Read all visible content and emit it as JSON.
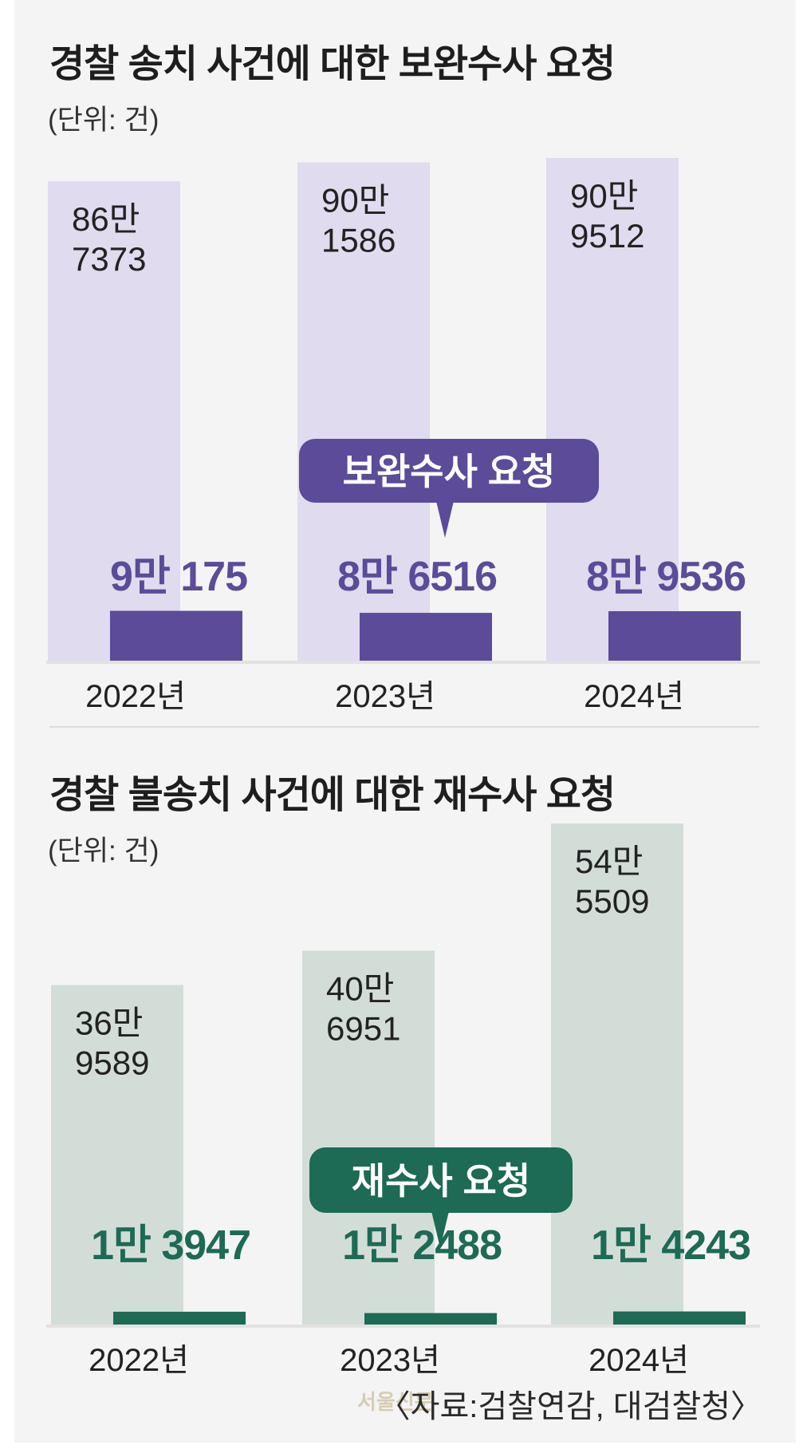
{
  "chart_data": [
    {
      "type": "bar",
      "title": "경찰 송치 사건에 대한 보완수사 요청",
      "unit": "(단위: 건)",
      "categories": [
        "2022년",
        "2023년",
        "2024년"
      ],
      "series": [
        {
          "name": "",
          "values": [
            867373,
            901586,
            909512
          ],
          "labels": [
            "86만\n7373",
            "90만\n1586",
            "90만\n9512"
          ]
        },
        {
          "name": "보완수사 요청",
          "values": [
            90175,
            86516,
            89536
          ],
          "labels": [
            "9만 175",
            "8만 6516",
            "8만 9536"
          ]
        }
      ],
      "callout": "보완수사 요청",
      "colors": {
        "total": "#e0dbee",
        "request": "#5b4b99",
        "text": "#5b4b99",
        "callout_bg": "#5b4b99"
      },
      "ylim": [
        0,
        909512
      ]
    },
    {
      "type": "bar",
      "title": "경찰 불송치 사건에 대한 재수사 요청",
      "unit": "(단위: 건)",
      "categories": [
        "2022년",
        "2023년",
        "2024년"
      ],
      "series": [
        {
          "name": "",
          "values": [
            369589,
            406951,
            545509
          ],
          "labels": [
            "36만\n9589",
            "40만\n6951",
            "54만\n5509"
          ]
        },
        {
          "name": "재수사 요청",
          "values": [
            13947,
            12488,
            14243
          ],
          "labels": [
            "1만 3947",
            "1만 2488",
            "1만 4243"
          ]
        }
      ],
      "callout": "재수사 요청",
      "colors": {
        "total": "#d3ddd8",
        "request": "#1d6a55",
        "text": "#1d6a55",
        "callout_bg": "#1d6a55"
      },
      "ylim": [
        0,
        545509
      ]
    }
  ],
  "source": "〈자료:검찰연감, 대검찰청〉",
  "watermark": "서울신문"
}
